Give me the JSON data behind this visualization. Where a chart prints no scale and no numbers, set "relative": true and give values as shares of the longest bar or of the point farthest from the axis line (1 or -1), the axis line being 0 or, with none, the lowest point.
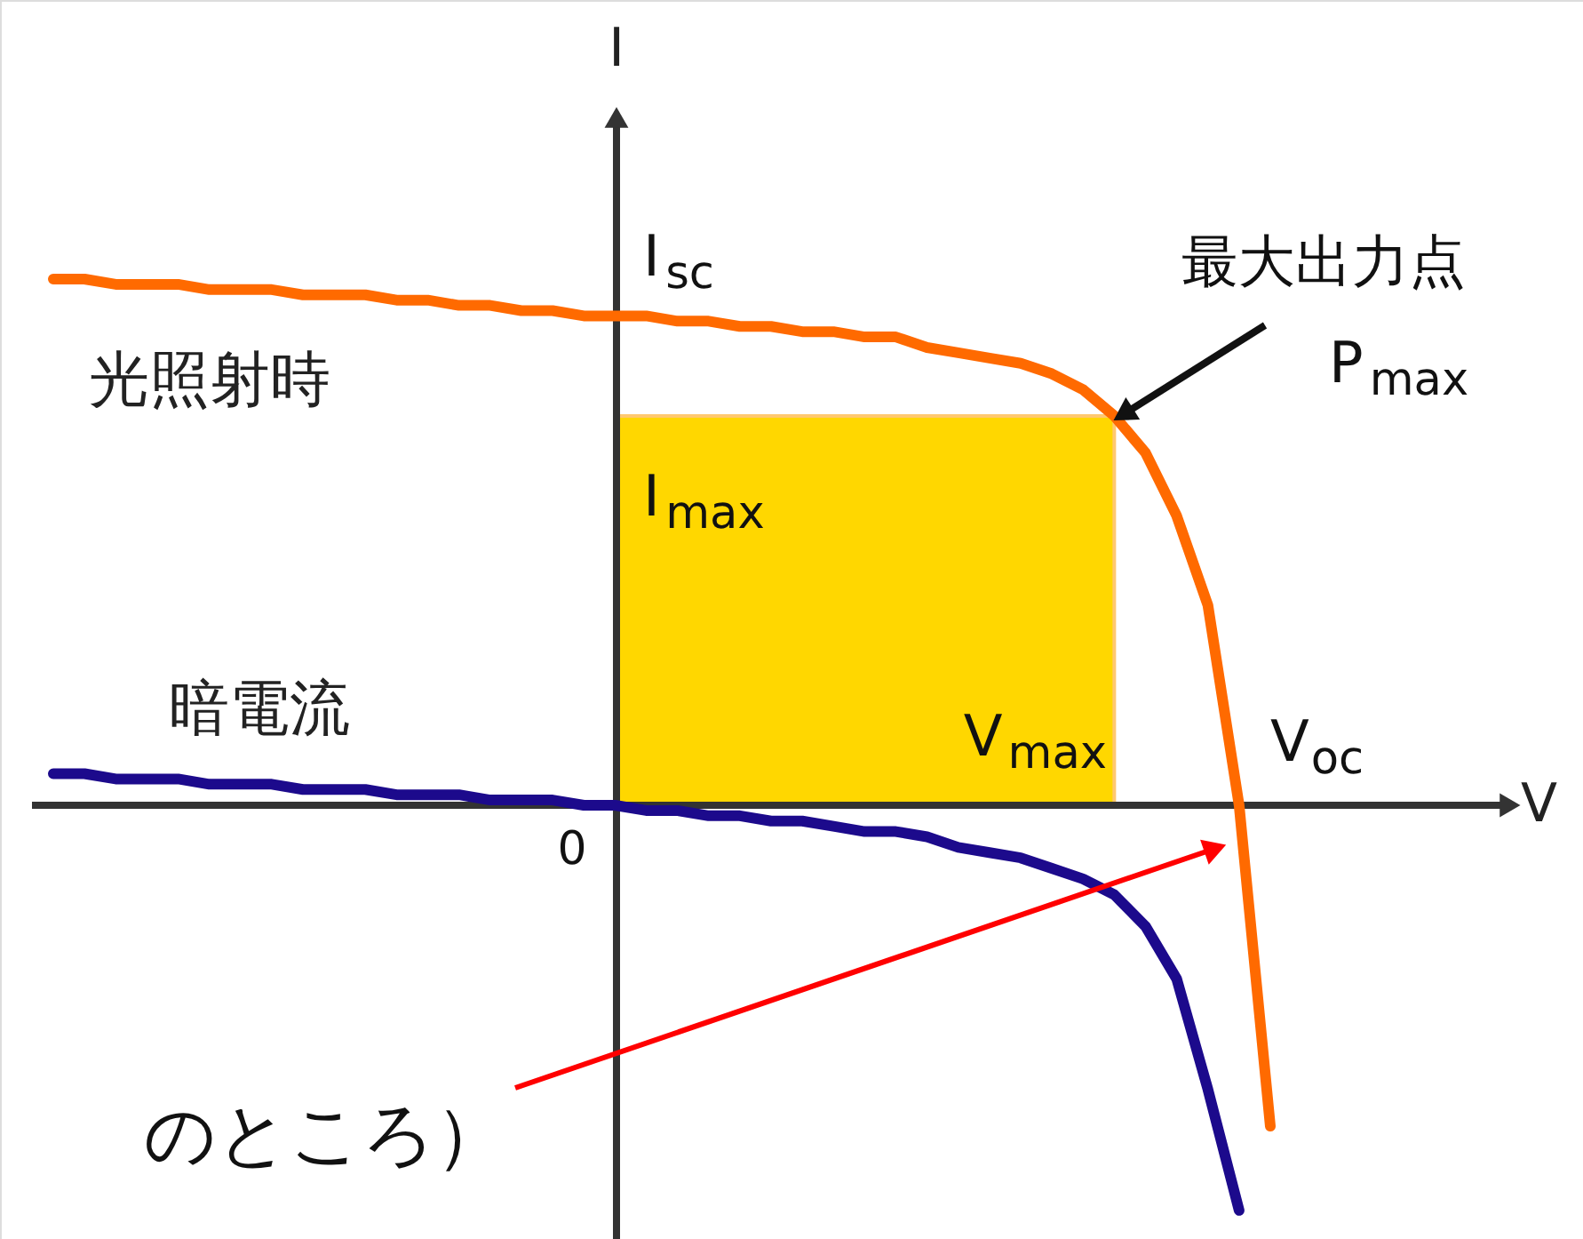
{
  "chart_data": {
    "type": "line",
    "relative": true,
    "xlabel": "V",
    "ylabel": "I",
    "marker": "none",
    "line_style": "solid",
    "categories": [
      null,
      null,
      null,
      null,
      null,
      null,
      null,
      null,
      null,
      null,
      null,
      null,
      null,
      null,
      null,
      null,
      null,
      null,
      null,
      null,
      null,
      null,
      null,
      null,
      null,
      null,
      null,
      null,
      null,
      null,
      null,
      null,
      null,
      null,
      null,
      null,
      null,
      null,
      null,
      null
    ],
    "series": [
      {
        "type": "area",
        "color": "#ffd700",
        "values": [
          null,
          null,
          null,
          null,
          null,
          null,
          null,
          null,
          null,
          null,
          null,
          null,
          null,
          null,
          null,
          null,
          null,
          null,
          0.74,
          0.74,
          0.74,
          0.74,
          0.74,
          0.74,
          0.74,
          0.74,
          0.74,
          0.74,
          0.74,
          0.74,
          0.74,
          0.74,
          0.74,
          0.74,
          0.74,
          null,
          null,
          null,
          null,
          null
        ]
      },
      {
        "name": "光照射時",
        "color": "#ff6a00",
        "values": [
          1.0,
          1.0,
          0.99,
          0.99,
          0.99,
          0.98,
          0.98,
          0.98,
          0.97,
          0.97,
          0.97,
          0.96,
          0.96,
          0.95,
          0.95,
          0.94,
          0.94,
          0.93,
          0.93,
          0.93,
          0.92,
          0.92,
          0.91,
          0.91,
          0.9,
          0.9,
          0.89,
          0.89,
          0.87,
          0.86,
          0.85,
          0.84,
          0.82,
          0.79,
          0.74,
          0.67,
          0.55,
          0.38,
          0,
          -0.61
        ]
      },
      {
        "name": "暗電流",
        "color": "#1c0a8c",
        "values": [
          0.06,
          0.06,
          0.05,
          0.05,
          0.05,
          0.04,
          0.04,
          0.04,
          0.03,
          0.03,
          0.03,
          0.02,
          0.02,
          0.02,
          0.01,
          0.01,
          0.01,
          0.0,
          0.0,
          -0.01,
          -0.01,
          -0.02,
          -0.02,
          -0.03,
          -0.03,
          -0.04,
          -0.05,
          -0.05,
          -0.06,
          -0.08,
          -0.09,
          -0.1,
          -0.12,
          -0.14,
          -0.17,
          -0.23,
          -0.33,
          -0.54,
          -0.77,
          null
        ]
      }
    ],
    "annotations": [
      "I$_{sc}$",
      "I$_{max}$",
      "V$_{max}$",
      "V$_{oc}$",
      "最大出力点",
      "P$_{max}$",
      "のところ）",
      "0"
    ]
  }
}
